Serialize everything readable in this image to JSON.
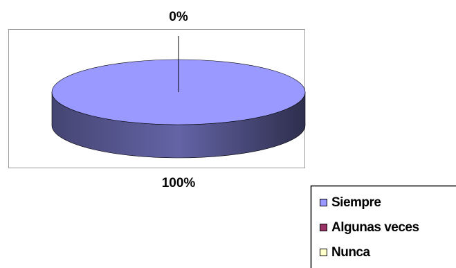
{
  "chart_data": {
    "type": "pie",
    "categories": [
      "Siempre",
      "Algunas veces",
      "Nunca"
    ],
    "values": [
      100,
      0,
      0
    ],
    "value_labels": [
      "100%",
      "0%",
      null
    ],
    "colors": [
      "#9999ff",
      "#993366",
      "#ffffcc"
    ],
    "legend": "bottom-right"
  }
}
